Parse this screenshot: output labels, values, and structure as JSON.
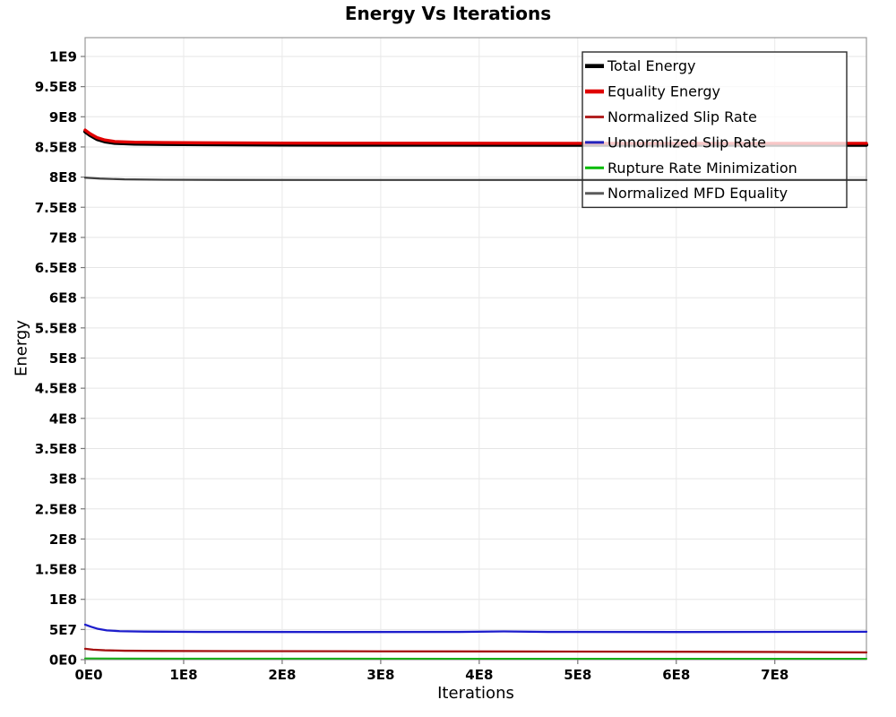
{
  "chart_data": {
    "type": "line",
    "title": "Energy Vs Iterations",
    "xlabel": "Iterations",
    "ylabel": "Energy",
    "xlim": [
      0,
      793000000
    ],
    "ylim": [
      0,
      1000000000
    ],
    "grid": true,
    "legend_position": "top-right-inside",
    "x_ticks": [
      {
        "v": 0,
        "label": "0E0"
      },
      {
        "v": 100000000,
        "label": "1E8"
      },
      {
        "v": 200000000,
        "label": "2E8"
      },
      {
        "v": 300000000,
        "label": "3E8"
      },
      {
        "v": 400000000,
        "label": "4E8"
      },
      {
        "v": 500000000,
        "label": "5E8"
      },
      {
        "v": 600000000,
        "label": "6E8"
      },
      {
        "v": 700000000,
        "label": "7E8"
      }
    ],
    "y_ticks": [
      {
        "v": 0,
        "label": "0E0"
      },
      {
        "v": 50000000,
        "label": "5E7"
      },
      {
        "v": 100000000,
        "label": "1E8"
      },
      {
        "v": 150000000,
        "label": "1.5E8"
      },
      {
        "v": 200000000,
        "label": "2E8"
      },
      {
        "v": 250000000,
        "label": "2.5E8"
      },
      {
        "v": 300000000,
        "label": "3E8"
      },
      {
        "v": 350000000,
        "label": "3.5E8"
      },
      {
        "v": 400000000,
        "label": "4E8"
      },
      {
        "v": 450000000,
        "label": "4.5E8"
      },
      {
        "v": 500000000,
        "label": "5E8"
      },
      {
        "v": 550000000,
        "label": "5.5E8"
      },
      {
        "v": 600000000,
        "label": "6E8"
      },
      {
        "v": 650000000,
        "label": "6.5E8"
      },
      {
        "v": 700000000,
        "label": "7E8"
      },
      {
        "v": 750000000,
        "label": "7.5E8"
      },
      {
        "v": 800000000,
        "label": "8E8"
      },
      {
        "v": 850000000,
        "label": "8.5E8"
      },
      {
        "v": 900000000,
        "label": "9E8"
      },
      {
        "v": 950000000,
        "label": "9.5E8"
      },
      {
        "v": 1000000000,
        "label": "1E9"
      }
    ],
    "series": [
      {
        "name": "Total Energy",
        "color": "#000000",
        "width": 4.2,
        "points": [
          [
            0,
            875500000
          ],
          [
            5000000,
            869500000
          ],
          [
            12000000,
            863000000
          ],
          [
            20000000,
            859000000
          ],
          [
            30000000,
            856500000
          ],
          [
            50000000,
            855300000
          ],
          [
            80000000,
            854700000
          ],
          [
            120000000,
            854300000
          ],
          [
            200000000,
            853800000
          ],
          [
            300000000,
            853600000
          ],
          [
            500000000,
            853500000
          ],
          [
            793000000,
            853500000
          ]
        ]
      },
      {
        "name": "Equality Energy",
        "color": "#E00000",
        "width": 3.4,
        "points": [
          [
            0,
            878000000
          ],
          [
            5000000,
            872000000
          ],
          [
            12000000,
            865500000
          ],
          [
            20000000,
            861500000
          ],
          [
            30000000,
            859000000
          ],
          [
            50000000,
            857800000
          ],
          [
            80000000,
            857200000
          ],
          [
            120000000,
            856800000
          ],
          [
            200000000,
            856300000
          ],
          [
            300000000,
            856100000
          ],
          [
            500000000,
            856000000
          ],
          [
            793000000,
            856000000
          ]
        ]
      },
      {
        "name": "Normalized Slip Rate",
        "color": "#A51111",
        "legend_color": "#B22222",
        "width": 2.3,
        "points": [
          [
            0,
            18000000
          ],
          [
            8000000,
            16500000
          ],
          [
            20000000,
            15500000
          ],
          [
            40000000,
            14800000
          ],
          [
            80000000,
            14400000
          ],
          [
            150000000,
            14100000
          ],
          [
            300000000,
            13800000
          ],
          [
            450000000,
            13500000
          ],
          [
            600000000,
            13100000
          ],
          [
            700000000,
            12700000
          ],
          [
            760000000,
            12200000
          ],
          [
            793000000,
            12000000
          ]
        ]
      },
      {
        "name": "Unnormlized Slip Rate",
        "color": "#1D1DCC",
        "legend_color": "#2222BB",
        "width": 2.3,
        "points": [
          [
            0,
            58000000
          ],
          [
            6000000,
            54500000
          ],
          [
            13000000,
            51000000
          ],
          [
            22000000,
            48500000
          ],
          [
            35000000,
            47200000
          ],
          [
            60000000,
            46500000
          ],
          [
            120000000,
            46000000
          ],
          [
            250000000,
            45800000
          ],
          [
            380000000,
            46000000
          ],
          [
            425000000,
            46800000
          ],
          [
            470000000,
            46000000
          ],
          [
            600000000,
            45800000
          ],
          [
            793000000,
            46200000
          ]
        ]
      },
      {
        "name": "Rupture Rate Minimization",
        "color": "#17AD17",
        "legend_color": "#00BB00",
        "width": 2.0,
        "points": [
          [
            0,
            2000000
          ],
          [
            100000000,
            1700000
          ],
          [
            400000000,
            1500000
          ],
          [
            793000000,
            1500000
          ]
        ]
      },
      {
        "name": "Normalized MFD Equality",
        "color": "#3E3E3E",
        "legend_color": "#5A5A5A",
        "width": 2.2,
        "draw_over_legend": true,
        "points": [
          [
            0,
            799000000
          ],
          [
            15000000,
            797500000
          ],
          [
            40000000,
            796200000
          ],
          [
            80000000,
            795600000
          ],
          [
            150000000,
            795300000
          ],
          [
            400000000,
            795200000
          ],
          [
            793000000,
            795200000
          ]
        ]
      }
    ]
  }
}
